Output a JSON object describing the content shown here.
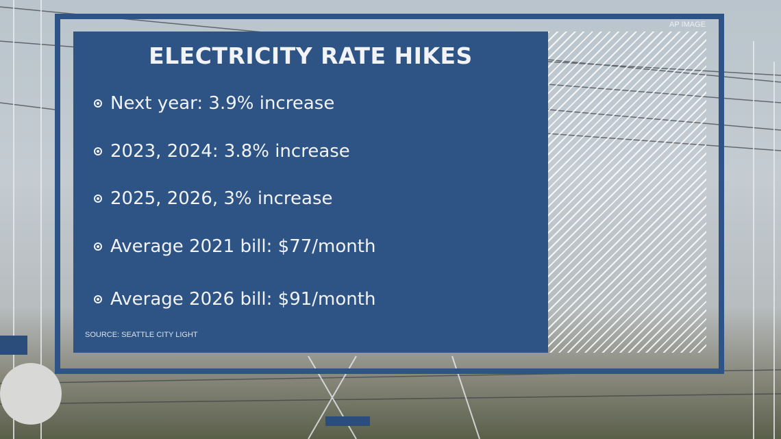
{
  "graphic": {
    "title": "ELECTRICITY RATE HIKES",
    "credit": "AP IMAGE",
    "bullets": [
      "Next year: 3.9% increase",
      "2023, 2024: 3.8% increase",
      "2025, 2026, 3% increase",
      "Average 2021 bill: $77/month",
      "Average 2026 bill: $91/month"
    ],
    "source": "SOURCE: SEATTLE CITY LIGHT",
    "bullet_icon": "radio-dot-icon"
  },
  "colors": {
    "panel": "#2e5486",
    "frame": "#2d5387",
    "text": "#f1f3f6"
  }
}
